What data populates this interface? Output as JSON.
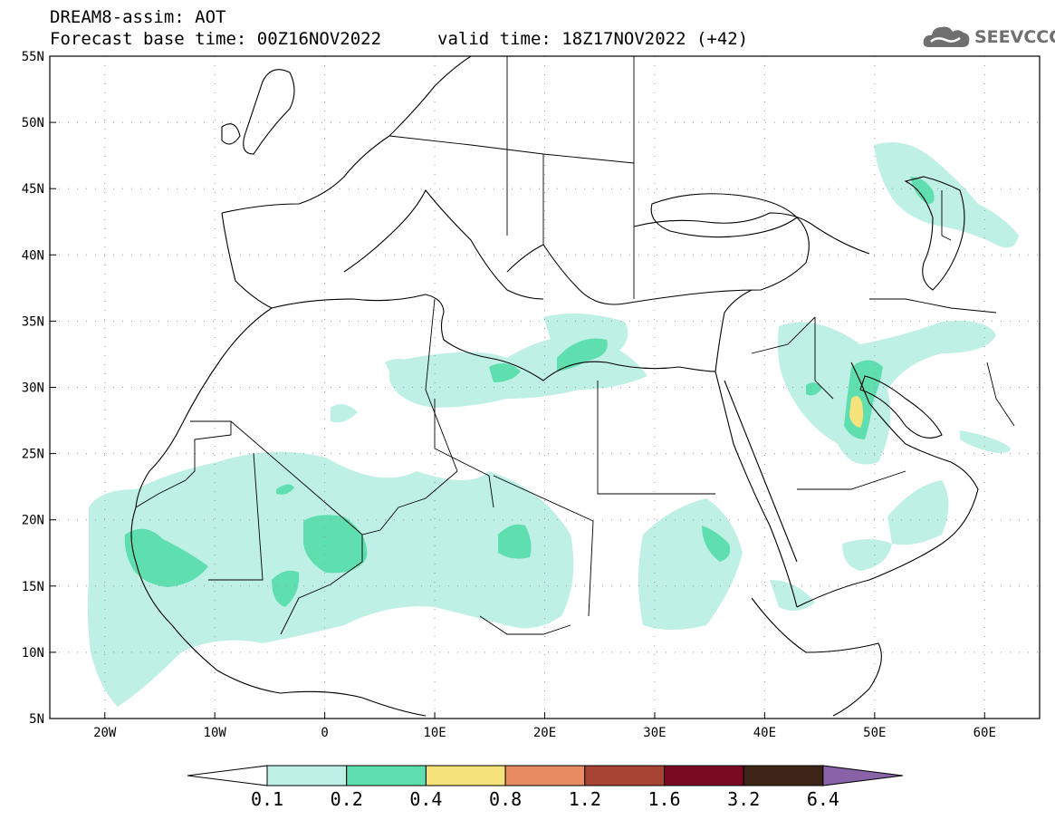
{
  "header": {
    "title": "DREAM8-assim: AOT",
    "base_time": "Forecast base time: 00Z16NOV2022",
    "valid_time": "valid time: 18Z17NOV2022 (+42)"
  },
  "logo": {
    "text": "SEEVCCC",
    "icon": "cloud-icon"
  },
  "map": {
    "lat_labels": [
      "55N",
      "50N",
      "45N",
      "40N",
      "35N",
      "30N",
      "25N",
      "20N",
      "15N",
      "10N",
      "5N"
    ],
    "lat_values": [
      55,
      50,
      45,
      40,
      35,
      30,
      25,
      20,
      15,
      10,
      5
    ],
    "lon_labels": [
      "20W",
      "10W",
      "0",
      "10E",
      "20E",
      "30E",
      "40E",
      "50E",
      "60E"
    ],
    "lon_values": [
      -20,
      -10,
      0,
      10,
      20,
      30,
      40,
      50,
      60
    ],
    "extent": {
      "lon_min": -25,
      "lon_max": 65,
      "lat_min": 5,
      "lat_max": 55
    },
    "gridlines": "dotted"
  },
  "legend": {
    "labels": [
      "0.1",
      "0.2",
      "0.4",
      "0.8",
      "1.2",
      "1.6",
      "3.2",
      "6.4"
    ],
    "colors": [
      "#ffffff",
      "#bff0e6",
      "#5fdeb0",
      "#f5e27a",
      "#e98c64",
      "#a84434",
      "#7a0a22",
      "#3c2416",
      "#8a62a8"
    ],
    "extend": "both"
  },
  "aot_colors": {
    "low": "#bff0e6",
    "mid": "#5fdeb0",
    "high": "#f5e27a"
  }
}
